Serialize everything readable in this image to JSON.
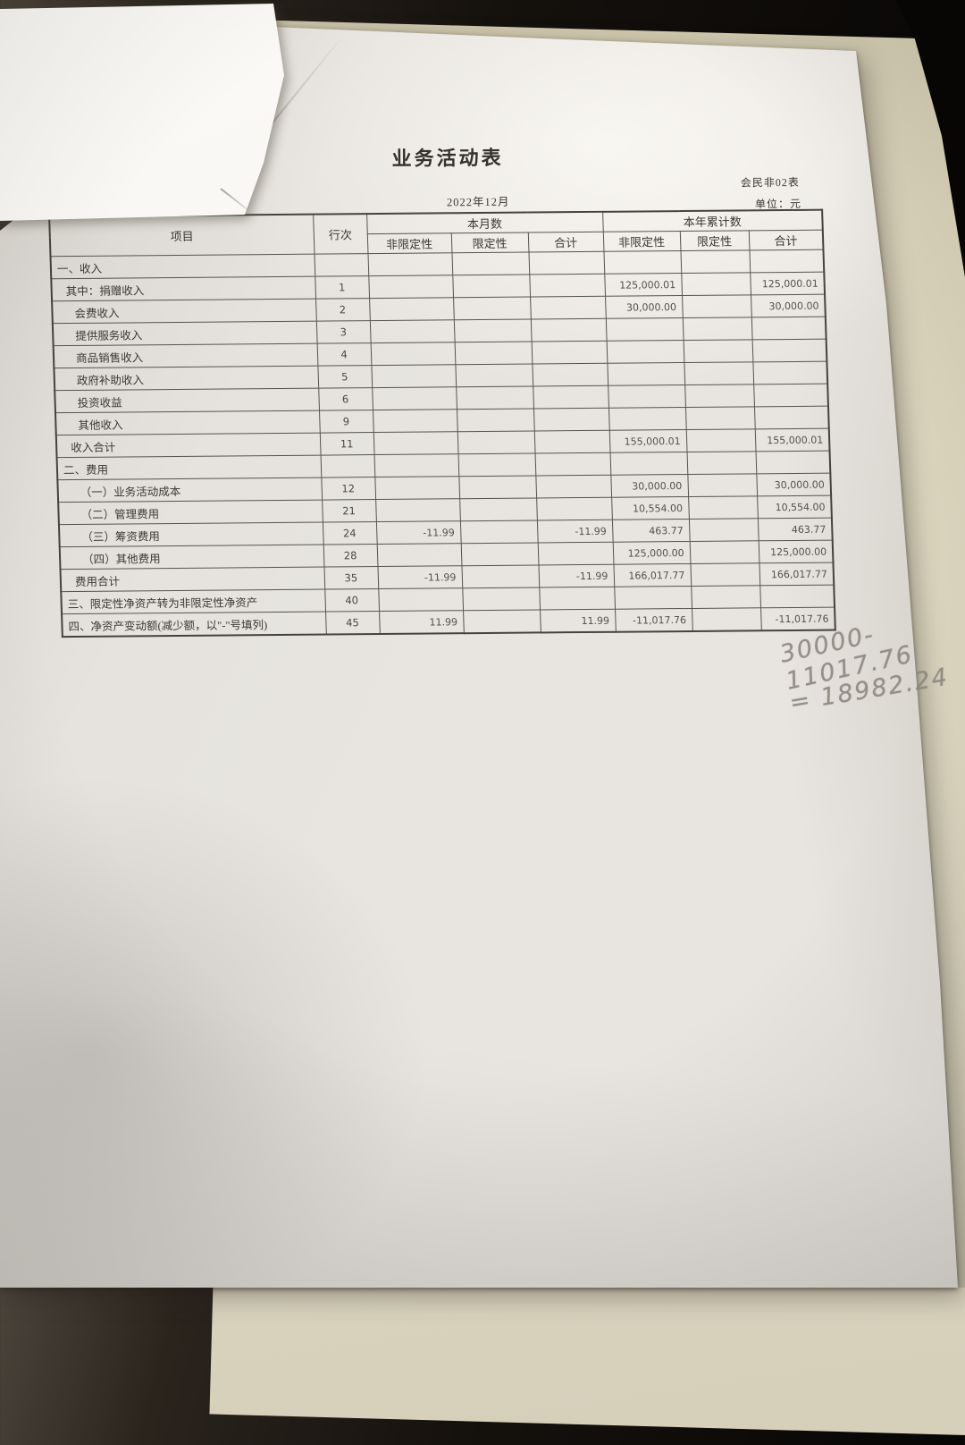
{
  "document": {
    "title": "业务活动表",
    "form_code": "会民非02表",
    "period": "2022年12月",
    "unit_label": "单位：元",
    "table": {
      "headers": {
        "item": "项目",
        "line_no": "行次",
        "month_group": "本月数",
        "year_group": "本年累计数",
        "sub_columns": [
          "非限定性",
          "限定性",
          "合计"
        ]
      },
      "rows": [
        {
          "label": "一、收入",
          "indent": 0,
          "line": "",
          "m_nr": "",
          "m_r": "",
          "m_t": "",
          "y_nr": "",
          "y_r": "",
          "y_t": ""
        },
        {
          "label": "其中：捐赠收入",
          "indent": 1,
          "line": "1",
          "m_nr": "",
          "m_r": "",
          "m_t": "",
          "y_nr": "125,000.01",
          "y_r": "",
          "y_t": "125,000.01"
        },
        {
          "label": "会费收入",
          "indent": 2,
          "line": "2",
          "m_nr": "",
          "m_r": "",
          "m_t": "",
          "y_nr": "30,000.00",
          "y_r": "",
          "y_t": "30,000.00"
        },
        {
          "label": "提供服务收入",
          "indent": 2,
          "line": "3",
          "m_nr": "",
          "m_r": "",
          "m_t": "",
          "y_nr": "",
          "y_r": "",
          "y_t": ""
        },
        {
          "label": "商品销售收入",
          "indent": 2,
          "line": "4",
          "m_nr": "",
          "m_r": "",
          "m_t": "",
          "y_nr": "",
          "y_r": "",
          "y_t": ""
        },
        {
          "label": "政府补助收入",
          "indent": 2,
          "line": "5",
          "m_nr": "",
          "m_r": "",
          "m_t": "",
          "y_nr": "",
          "y_r": "",
          "y_t": ""
        },
        {
          "label": "投资收益",
          "indent": 2,
          "line": "6",
          "m_nr": "",
          "m_r": "",
          "m_t": "",
          "y_nr": "",
          "y_r": "",
          "y_t": ""
        },
        {
          "label": "其他收入",
          "indent": 2,
          "line": "9",
          "m_nr": "",
          "m_r": "",
          "m_t": "",
          "y_nr": "",
          "y_r": "",
          "y_t": ""
        },
        {
          "label": "收入合计",
          "indent": 1,
          "line": "11",
          "m_nr": "",
          "m_r": "",
          "m_t": "",
          "y_nr": "155,000.01",
          "y_r": "",
          "y_t": "155,000.01"
        },
        {
          "label": "二、费用",
          "indent": 0,
          "line": "",
          "m_nr": "",
          "m_r": "",
          "m_t": "",
          "y_nr": "",
          "y_r": "",
          "y_t": ""
        },
        {
          "label": "（一）业务活动成本",
          "indent": 2,
          "line": "12",
          "m_nr": "",
          "m_r": "",
          "m_t": "",
          "y_nr": "30,000.00",
          "y_r": "",
          "y_t": "30,000.00"
        },
        {
          "label": "（二）管理费用",
          "indent": 2,
          "line": "21",
          "m_nr": "",
          "m_r": "",
          "m_t": "",
          "y_nr": "10,554.00",
          "y_r": "",
          "y_t": "10,554.00"
        },
        {
          "label": "（三）筹资费用",
          "indent": 2,
          "line": "24",
          "m_nr": "-11.99",
          "m_r": "",
          "m_t": "-11.99",
          "y_nr": "463.77",
          "y_r": "",
          "y_t": "463.77"
        },
        {
          "label": "（四）其他费用",
          "indent": 2,
          "line": "28",
          "m_nr": "",
          "m_r": "",
          "m_t": "",
          "y_nr": "125,000.00",
          "y_r": "",
          "y_t": "125,000.00"
        },
        {
          "label": "费用合计",
          "indent": 1,
          "line": "35",
          "m_nr": "-11.99",
          "m_r": "",
          "m_t": "-11.99",
          "y_nr": "166,017.77",
          "y_r": "",
          "y_t": "166,017.77"
        },
        {
          "label": "三、限定性净资产转为非限定性净资产",
          "indent": 0,
          "line": "40",
          "m_nr": "",
          "m_r": "",
          "m_t": "",
          "y_nr": "",
          "y_r": "",
          "y_t": ""
        },
        {
          "label": "四、净资产变动额(减少额，以\"-\"号填列)",
          "indent": 0,
          "line": "45",
          "m_nr": "11.99",
          "m_r": "",
          "m_t": "11.99",
          "y_nr": "-11,017.76",
          "y_r": "",
          "y_t": "-11,017.76"
        }
      ]
    },
    "handwriting": {
      "line1": "30000-11017.76",
      "line2": "= 18982.24"
    }
  },
  "colors": {
    "paper": "#e8e5e0",
    "overlay_sheet": "#f7f6f2",
    "desk_dark": "#15110d",
    "underlay_cream": "#d8d1b9",
    "table_line": "#57534c",
    "ink": "#3b3834",
    "pencil": "#8e8780"
  }
}
